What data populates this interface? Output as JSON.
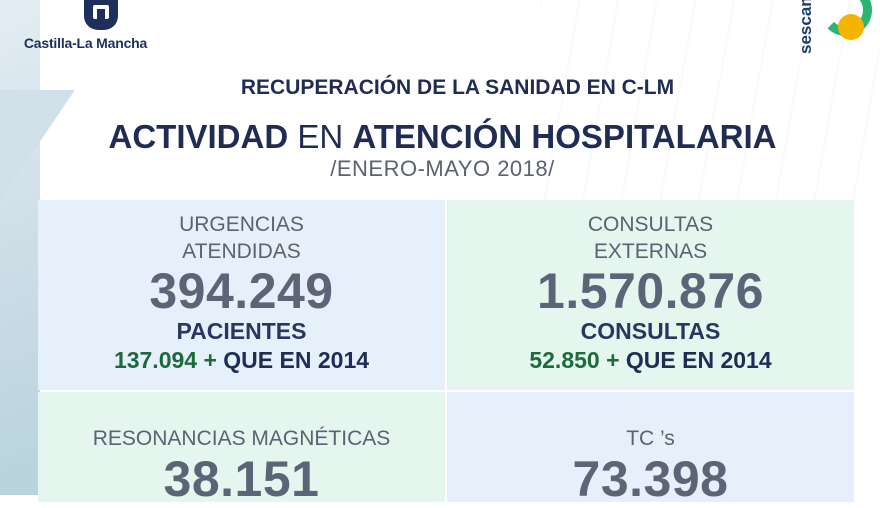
{
  "header": {
    "logo_left_text": "Castilla-La Mancha",
    "logo_right_text": "sescam"
  },
  "subtitle": "RECUPERACIÓN DE LA SANIDAD EN C-LM",
  "title": {
    "part1": "ACTIVIDAD",
    "part2": "EN",
    "part3": "ATENCIÓN HOSPITALARIA"
  },
  "period": "/ENERO-MAYO 2018/",
  "cards": {
    "urgencias": {
      "label_line1": "URGENCIAS",
      "label_line2": "ATENDIDAS",
      "number": "394.249",
      "unit": "PACIENTES",
      "increase_value": "137.094 +",
      "increase_text": "QUE EN 2014"
    },
    "consultas": {
      "label_line1": "CONSULTAS",
      "label_line2": "EXTERNAS",
      "number": "1.570.876",
      "unit": "CONSULTAS",
      "increase_value": "52.850 +",
      "increase_text": "QUE EN 2014"
    },
    "resonancias": {
      "label": "RESONANCIAS MAGNÉTICAS",
      "number": "38.151"
    },
    "tc": {
      "label": "TC ’s",
      "number": "73.398"
    }
  },
  "colors": {
    "navy": "#1f2d55",
    "number_gray": "#5c6477",
    "green": "#1d6a3a",
    "card_blue": "#e6f0fa",
    "card_green": "#e5f6ef"
  }
}
